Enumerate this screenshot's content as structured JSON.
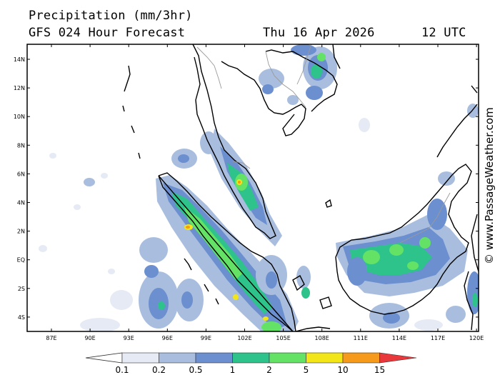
{
  "header": {
    "title": "Precipitation (mm/3hr)",
    "subtitle": "GFS 024 Hour Forecast",
    "date": "Thu 16 Apr 2026",
    "time": "12 UTC"
  },
  "credit": "© www.PassageWeather.com",
  "axes": {
    "lat_labels": [
      "14N",
      "12N",
      "10N",
      "8N",
      "6N",
      "4N",
      "2N",
      "EQ",
      "2S",
      "4S"
    ],
    "lon_labels": [
      "87E",
      "90E",
      "93E",
      "96E",
      "99E",
      "102E",
      "105E",
      "108E",
      "111E",
      "114E",
      "117E",
      "120E"
    ]
  },
  "legend": {
    "labels": [
      "0.1",
      "0.2",
      "0.5",
      "1",
      "2",
      "5",
      "10",
      "15"
    ],
    "colors": [
      "#e6eaf4",
      "#a9bedf",
      "#6b8fcf",
      "#2fc38c",
      "#63e266",
      "#f2e619",
      "#f59a1b",
      "#e8383c"
    ]
  },
  "map": {
    "land_color": "#ffffff",
    "coast_color": "#000000",
    "border_color": "#9a9a9a"
  }
}
